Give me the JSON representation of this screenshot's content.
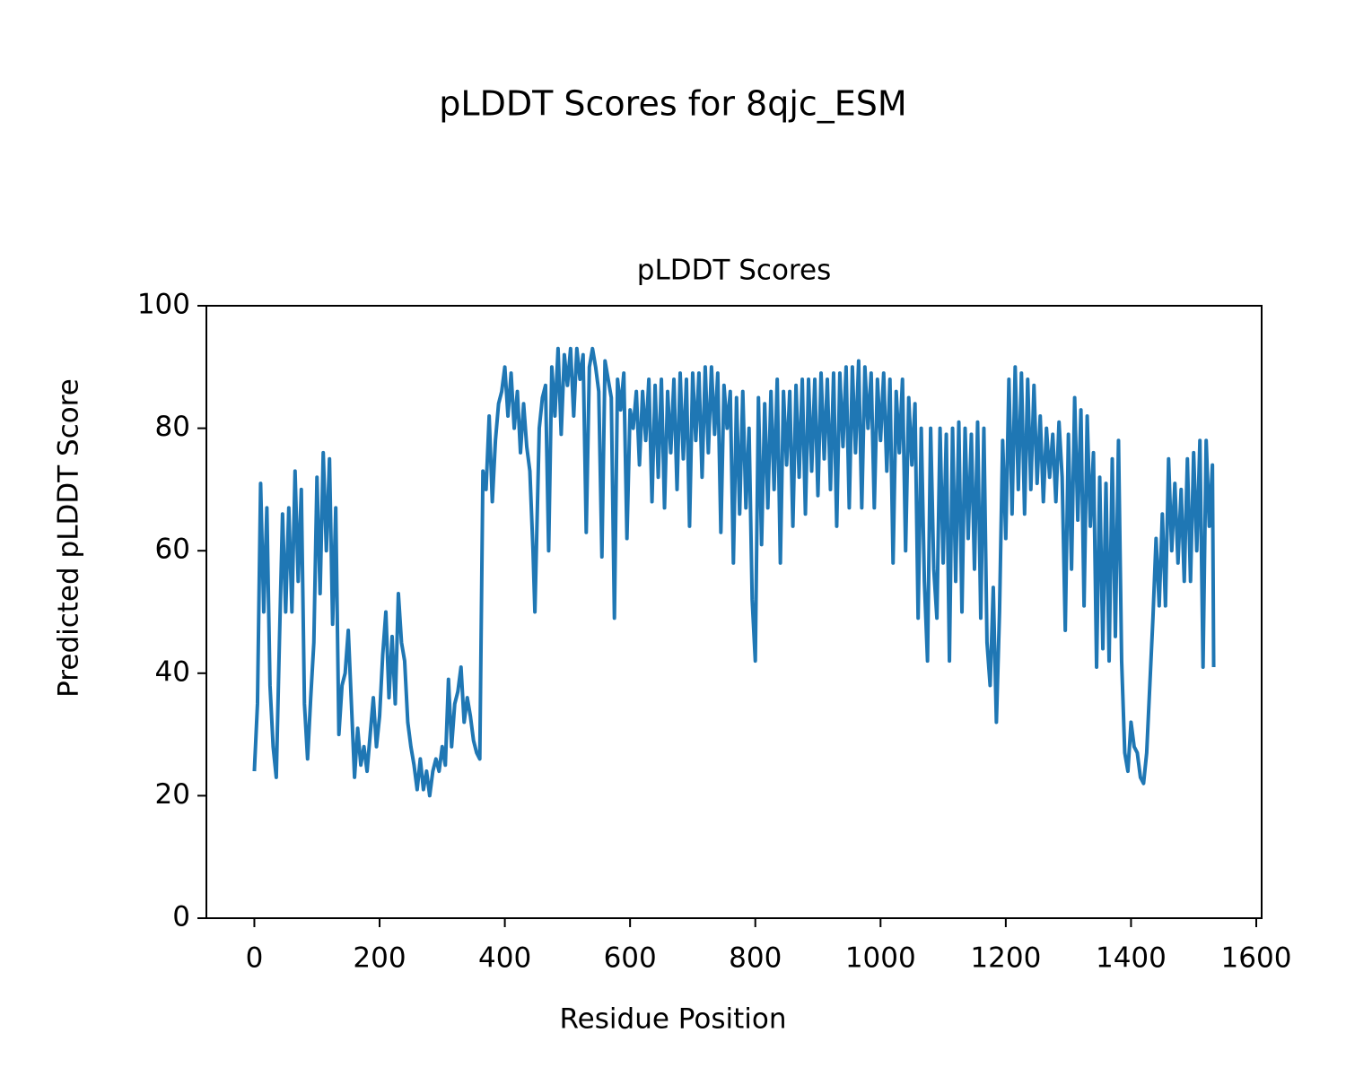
{
  "chart_data": {
    "type": "line",
    "title": "pLDDT Scores for 8qjc_ESM",
    "subtitle": "pLDDT Scores",
    "x_label": "Residue Position",
    "y_label": "Predicted pLDDT Score",
    "color": "#1f77b4",
    "x": [
      0,
      5,
      10,
      15,
      20,
      25,
      30,
      35,
      40,
      45,
      50,
      55,
      60,
      65,
      70,
      75,
      80,
      85,
      90,
      95,
      100,
      105,
      110,
      115,
      120,
      125,
      130,
      135,
      140,
      145,
      150,
      155,
      160,
      165,
      170,
      175,
      180,
      185,
      190,
      195,
      200,
      205,
      210,
      215,
      220,
      225,
      230,
      235,
      240,
      245,
      250,
      255,
      260,
      265,
      270,
      275,
      280,
      285,
      290,
      295,
      300,
      305,
      310,
      315,
      320,
      325,
      330,
      335,
      340,
      345,
      350,
      355,
      360,
      365,
      370,
      375,
      380,
      385,
      390,
      395,
      400,
      405,
      410,
      415,
      420,
      425,
      430,
      435,
      440,
      445,
      448,
      455,
      460,
      465,
      470,
      475,
      480,
      485,
      490,
      495,
      500,
      505,
      510,
      515,
      520,
      525,
      530,
      535,
      540,
      545,
      550,
      555,
      560,
      565,
      570,
      575,
      580,
      585,
      590,
      595,
      600,
      605,
      610,
      615,
      620,
      625,
      630,
      635,
      640,
      645,
      650,
      655,
      660,
      665,
      670,
      675,
      680,
      685,
      690,
      695,
      700,
      705,
      710,
      715,
      720,
      725,
      730,
      735,
      740,
      745,
      750,
      755,
      760,
      765,
      770,
      775,
      780,
      785,
      790,
      795,
      800,
      805,
      810,
      815,
      820,
      825,
      830,
      835,
      840,
      845,
      850,
      855,
      860,
      865,
      870,
      875,
      880,
      885,
      890,
      895,
      900,
      905,
      910,
      915,
      920,
      925,
      930,
      935,
      940,
      945,
      950,
      955,
      960,
      965,
      970,
      975,
      980,
      985,
      990,
      995,
      1000,
      1005,
      1010,
      1015,
      1020,
      1025,
      1030,
      1035,
      1040,
      1045,
      1050,
      1055,
      1060,
      1065,
      1070,
      1075,
      1080,
      1085,
      1090,
      1095,
      1100,
      1105,
      1110,
      1115,
      1120,
      1125,
      1130,
      1135,
      1140,
      1145,
      1150,
      1155,
      1160,
      1165,
      1170,
      1175,
      1180,
      1185,
      1190,
      1195,
      1200,
      1205,
      1210,
      1215,
      1220,
      1225,
      1230,
      1235,
      1240,
      1245,
      1250,
      1255,
      1260,
      1265,
      1270,
      1275,
      1280,
      1285,
      1290,
      1295,
      1300,
      1305,
      1310,
      1315,
      1320,
      1325,
      1330,
      1335,
      1340,
      1345,
      1350,
      1355,
      1360,
      1365,
      1370,
      1375,
      1380,
      1385,
      1390,
      1395,
      1400,
      1405,
      1410,
      1415,
      1420,
      1425,
      1430,
      1435,
      1440,
      1445,
      1450,
      1455,
      1460,
      1465,
      1470,
      1475,
      1480,
      1485,
      1490,
      1495,
      1500,
      1505,
      1510,
      1515,
      1520,
      1525,
      1530,
      1532
    ],
    "values": [
      24,
      35,
      71,
      50,
      67,
      38,
      28,
      23,
      45,
      66,
      50,
      67,
      50,
      73,
      55,
      70,
      35,
      26,
      36,
      45,
      72,
      53,
      76,
      60,
      75,
      48,
      67,
      30,
      38,
      40,
      47,
      35,
      23,
      31,
      25,
      28,
      24,
      30,
      36,
      28,
      33,
      43,
      50,
      36,
      46,
      35,
      53,
      45,
      42,
      32,
      28,
      25,
      21,
      26,
      21,
      24,
      20,
      24,
      26,
      24,
      28,
      25,
      39,
      28,
      35,
      37,
      41,
      32,
      36,
      33,
      29,
      27,
      26,
      73,
      70,
      82,
      68,
      78,
      84,
      86,
      90,
      82,
      89,
      80,
      86,
      76,
      84,
      77,
      73,
      60,
      50,
      80,
      85,
      87,
      60,
      90,
      82,
      93,
      79,
      92,
      87,
      93,
      82,
      93,
      88,
      92,
      63,
      90,
      93,
      90,
      86,
      59,
      91,
      88,
      85,
      49,
      88,
      83,
      89,
      62,
      83,
      80,
      86,
      74,
      86,
      78,
      88,
      68,
      87,
      72,
      88,
      67,
      86,
      76,
      88,
      70,
      89,
      75,
      88,
      64,
      89,
      78,
      89,
      72,
      90,
      76,
      90,
      79,
      89,
      63,
      87,
      80,
      86,
      58,
      85,
      66,
      86,
      67,
      80,
      52,
      42,
      85,
      61,
      84,
      67,
      86,
      70,
      88,
      58,
      86,
      74,
      86,
      64,
      87,
      72,
      88,
      66,
      88,
      73,
      88,
      69,
      89,
      75,
      88,
      70,
      89,
      64,
      89,
      77,
      90,
      67,
      90,
      76,
      91,
      67,
      90,
      80,
      89,
      67,
      88,
      78,
      89,
      73,
      88,
      58,
      86,
      76,
      88,
      60,
      85,
      74,
      84,
      49,
      80,
      55,
      42,
      80,
      57,
      49,
      80,
      58,
      79,
      42,
      80,
      55,
      81,
      50,
      80,
      62,
      79,
      57,
      81,
      49,
      80,
      45,
      38,
      54,
      32,
      50,
      78,
      62,
      88,
      66,
      90,
      70,
      89,
      66,
      88,
      70,
      87,
      71,
      82,
      68,
      80,
      72,
      79,
      68,
      81,
      72,
      47,
      79,
      57,
      85,
      65,
      83,
      51,
      82,
      64,
      76,
      41,
      72,
      44,
      71,
      42,
      75,
      46,
      78,
      42,
      27,
      24,
      32,
      28,
      27,
      23,
      22,
      27,
      38,
      49,
      62,
      51,
      66,
      51,
      75,
      60,
      71,
      58,
      70,
      55,
      75,
      55,
      76,
      60,
      78,
      41,
      78,
      64,
      74,
      41
    ],
    "xlim": [
      -76.6,
      1608.6
    ],
    "ylim": [
      0,
      100
    ],
    "xticks": [
      0,
      200,
      400,
      600,
      800,
      1000,
      1200,
      1400,
      1600
    ],
    "yticks": [
      0,
      20,
      40,
      60,
      80,
      100
    ]
  }
}
